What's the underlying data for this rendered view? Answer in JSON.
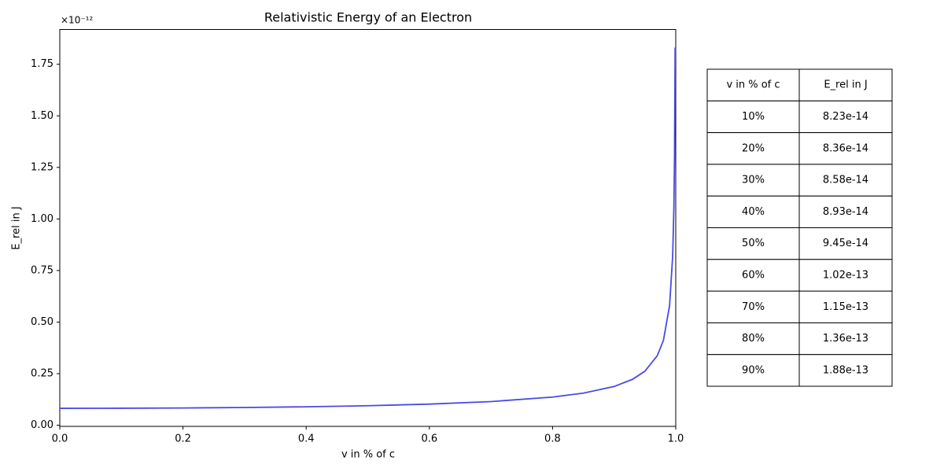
{
  "chart_data": {
    "type": "line",
    "title": "Relativistic Energy of an Electron",
    "x_label": "v in % of c",
    "y_label": "E_rel in J",
    "y_offset_label": "×10⁻¹²",
    "x": [
      0,
      0.1,
      0.2,
      0.3,
      0.4,
      0.5,
      0.6,
      0.7,
      0.8,
      0.85,
      0.9,
      0.93,
      0.95,
      0.97,
      0.98,
      0.99,
      0.995,
      0.997,
      0.998,
      0.999
    ],
    "series": [
      {
        "color": "#4a4ae6",
        "values": [
          0.0819,
          0.0823,
          0.0836,
          0.0858,
          0.0893,
          0.0945,
          0.1023,
          0.1146,
          0.1365,
          0.1554,
          0.1878,
          0.2227,
          0.2622,
          0.3368,
          0.4114,
          0.5804,
          0.8197,
          1.0577,
          1.2951,
          1.8311
        ]
      }
    ],
    "xlim": [
      0,
      1
    ],
    "xticks": [
      {
        "value": 0,
        "label": "0.0"
      },
      {
        "value": 0.2,
        "label": "0.2"
      },
      {
        "value": 0.4,
        "label": "0.4"
      },
      {
        "value": 0.6,
        "label": "0.6"
      },
      {
        "value": 0.8,
        "label": "0.8"
      },
      {
        "value": 1,
        "label": "1.0"
      }
    ],
    "ylim": [
      -0.0056,
      1.9186
    ],
    "yticks": [
      {
        "value": 0,
        "label": "0.00"
      },
      {
        "value": 0.25,
        "label": "0.25"
      },
      {
        "value": 0.5,
        "label": "0.50"
      },
      {
        "value": 0.75,
        "label": "0.75"
      },
      {
        "value": 1,
        "label": "1.00"
      },
      {
        "value": 1.25,
        "label": "1.25"
      },
      {
        "value": 1.5,
        "label": "1.50"
      },
      {
        "value": 1.75,
        "label": "1.75"
      }
    ],
    "grid": false
  },
  "table": {
    "header": [
      "v in % of c",
      "E_rel in J"
    ],
    "rows": [
      [
        "10%",
        "8.23e-14"
      ],
      [
        "20%",
        "8.36e-14"
      ],
      [
        "30%",
        "8.58e-14"
      ],
      [
        "40%",
        "8.93e-14"
      ],
      [
        "50%",
        "9.45e-14"
      ],
      [
        "60%",
        "1.02e-13"
      ],
      [
        "70%",
        "1.15e-13"
      ],
      [
        "80%",
        "1.36e-13"
      ],
      [
        "90%",
        "1.88e-13"
      ]
    ]
  }
}
